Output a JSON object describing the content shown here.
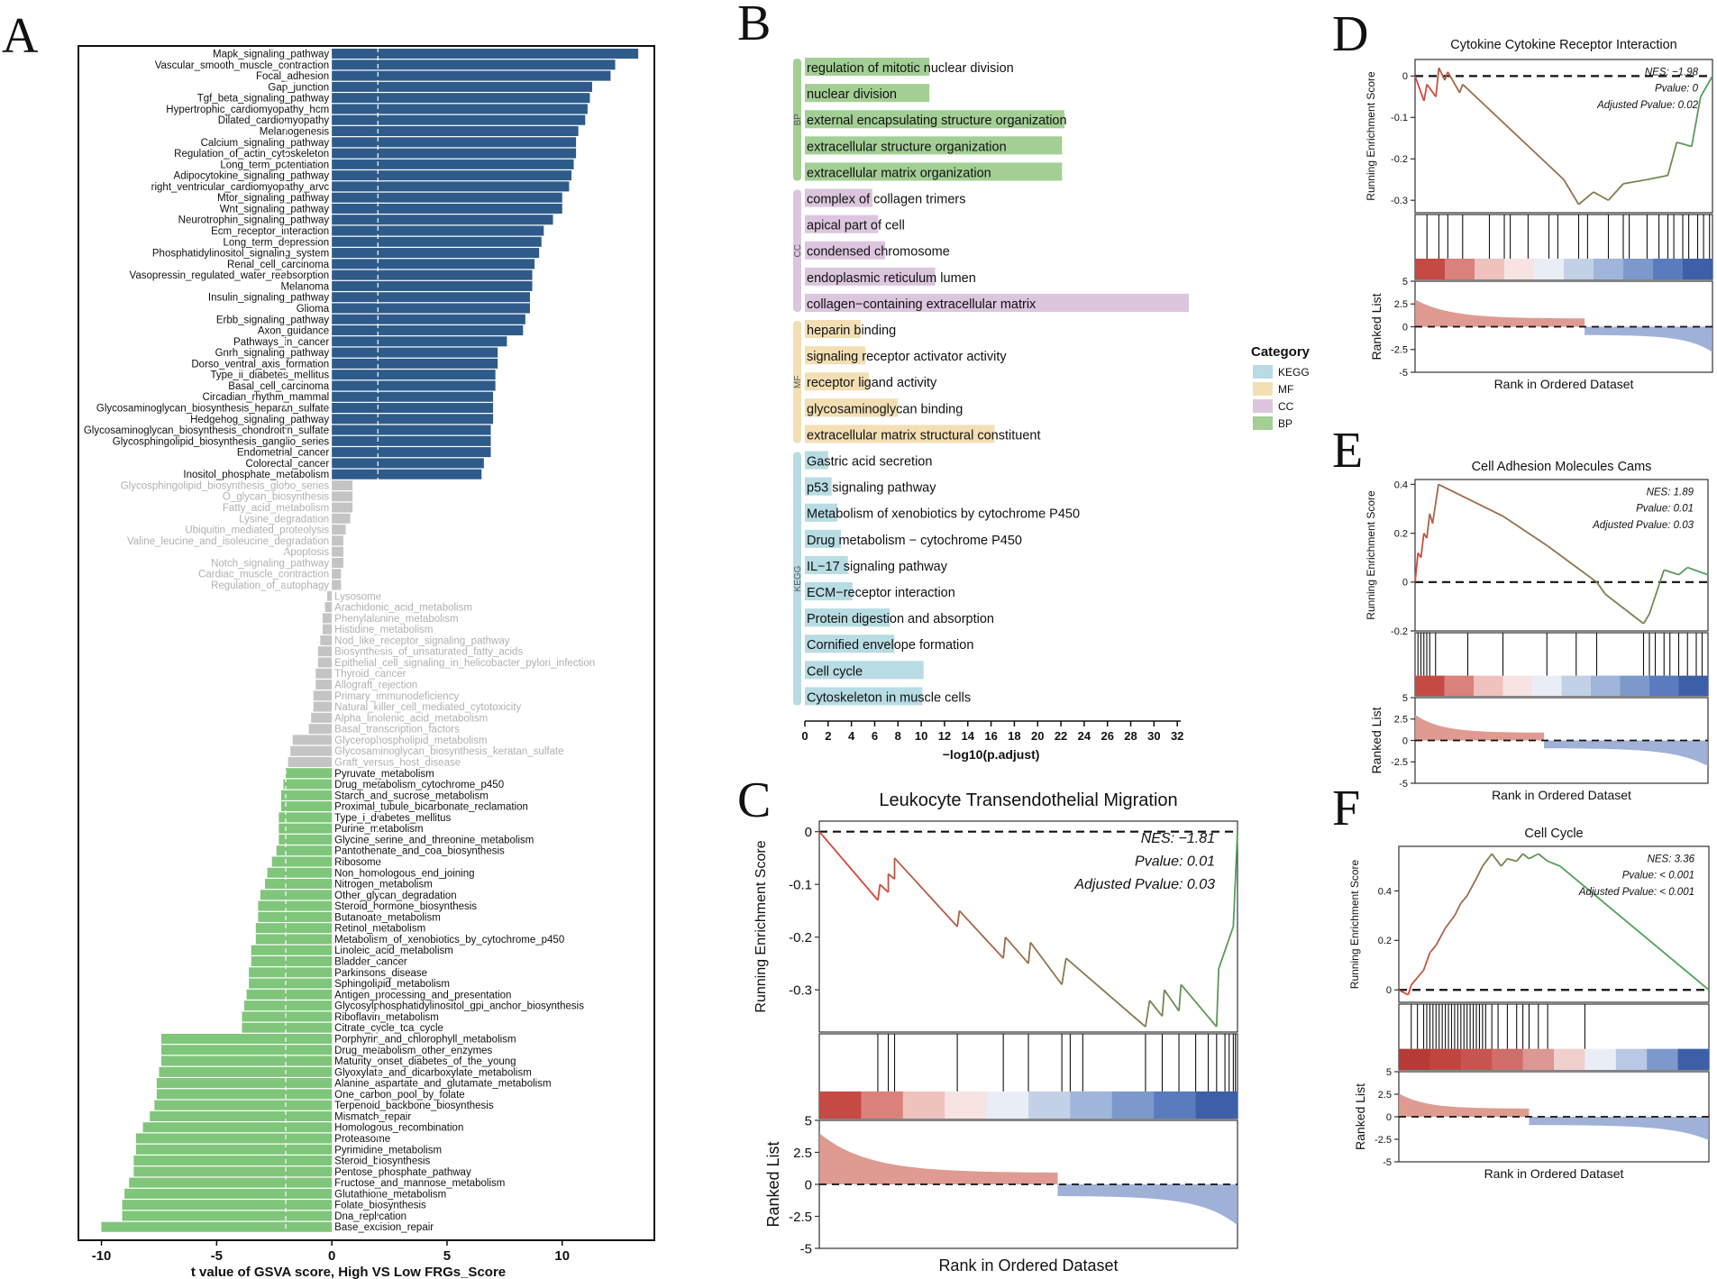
{
  "panels": {
    "A": "A",
    "B": "B",
    "C": "C",
    "D": "D",
    "E": "E",
    "F": "F"
  },
  "colors": {
    "up": "#2e5b89",
    "down": "#7fc57a",
    "ns": "#c4c4c4",
    "kegg": "#b8dce3",
    "mf": "#f3dfb3",
    "cc": "#dcc6de",
    "bp": "#a3cf95",
    "esRed": "#d6473b",
    "esGreen": "#4aa45d",
    "rankRed": "#d9897e",
    "rankBlue": "#8fa3d1"
  },
  "chart_data": [
    {
      "id": "A",
      "type": "bar",
      "xlabel": "t value of GSVA score, High VS Low FRGs_Score",
      "xlim": [
        -11,
        14
      ],
      "xticks": [
        -10,
        -5,
        0,
        5,
        10
      ],
      "threshold": 2,
      "categories": [
        "Mapk_signaling_pathway",
        "Vascular_smooth_muscle_contraction",
        "Focal_adhesion",
        "Gap_junction",
        "Tgf_beta_signaling_pathway",
        "Hypertrophic_cardiomyopathy_hcm",
        "Dilated_cardiomyopathy",
        "Melanogenesis",
        "Calcium_signaling_pathway",
        "Regulation_of_actin_cytoskeleton",
        "Long_term_potentiation",
        "Adipocytokine_signaling_pathway",
        "right_ventricular_cardiomyopathy_arvc",
        "Mtor_signaling_pathway",
        "Wnt_signaling_pathway",
        "Neurotrophin_signaling_pathway",
        "Ecm_receptor_interaction",
        "Long_term_depression",
        "Phosphatidylinositol_signaling_system",
        "Renal_cell_carcinoma",
        "Vasopressin_regulated_water_reabsorption",
        "Melanoma",
        "Insulin_signaling_pathway",
        "Glioma",
        "Erbb_signaling_pathway",
        "Axon_guidance",
        "Pathways_in_cancer",
        "Gnrh_signaling_pathway",
        "Dorso_ventral_axis_formation",
        "Type_ii_diabetes_mellitus",
        "Basal_cell_carcinoma",
        "Circadian_rhythm_mammal",
        "Glycosaminoglycan_biosynthesis_heparan_sulfate",
        "Hedgehog_signaling_pathway",
        "Glycosaminoglycan_biosynthesis_chondroitin_sulfate",
        "Glycosphingolipid_biosynthesis_ganglio_series",
        "Endometrial_cancer",
        "Colorectal_cancer",
        "Inositol_phosphate_metabolism",
        "Glycosphingolipid_biosynthesis_globo_series",
        "O_glycan_biosynthesis",
        "Fatty_acid_metabolism",
        "Lysine_degradation",
        "Ubiquitin_mediated_proteolysis",
        "Valine_leucine_and_isoleucine_degradation",
        "Apoptosis",
        "Notch_signaling_pathway",
        "Cardiac_muscle_contraction",
        "Regulation_of_autophagy",
        "Lysosome",
        "Arachidonic_acid_metabolism",
        "Phenylalanine_metabolism",
        "Histidine_metabolism",
        "Nod_like_receptor_signaling_pathway",
        "Biosynthesis_of_unsaturated_fatty_acids",
        "Epithelial_cell_signaling_in_helicobacter_pylori_infection",
        "Thyroid_cancer",
        "Allograft_rejection",
        "Primary_immunodeficiency",
        "Natural_killer_cell_mediated_cytotoxicity",
        "Alpha_linolenic_acid_metabolism",
        "Basal_transcription_factors",
        "Glycerophospholipid_metabolism",
        "Glycosaminoglycan_biosynthesis_keratan_sulfate",
        "Graft_versus_host_disease",
        "Pyruvate_metabolism",
        "Drug_metabolism_cytochrome_p450",
        "Starch_and_sucrose_metabolism",
        "Proximal_tubule_bicarbonate_reclamation",
        "Type_i_diabetes_mellitus",
        "Purine_metabolism",
        "Glycine_serine_and_threonine_metabolism",
        "Pantothenate_and_coa_biosynthesis",
        "Ribosome",
        "Non_homologous_end_joining",
        "Nitrogen_metabolism",
        "Other_glycan_degradation",
        "Steroid_hormone_biosynthesis",
        "Butanoate_metabolism",
        "Retinol_metabolism",
        "Metabolism_of_xenobiotics_by_cytochrome_p450",
        "Linoleic_acid_metabolism",
        "Bladder_cancer",
        "Parkinsons_disease",
        "Sphingolipid_metabolism",
        "Antigen_processing_and_presentation",
        "Glycosylphosphatidylinositol_gpi_anchor_biosynthesis",
        "Riboflavin_metabolism",
        "Citrate_cycle_tca_cycle",
        "Porphyrin_and_chlorophyll_metabolism",
        "Drug_metabolism_other_enzymes",
        "Maturity_onset_diabetes_of_the_young",
        "Glyoxylate_and_dicarboxylate_metabolism",
        "Alanine_aspartate_and_glutamate_metabolism",
        "One_carbon_pool_by_folate",
        "Terpenoid_backbone_biosynthesis",
        "Mismatch_repair",
        "Homologous_recombination",
        "Proteasome",
        "Pyrimidine_metabolism",
        "Steroid_biosynthesis",
        "Pentose_phosphate_pathway",
        "Fructose_and_mannose_metabolism",
        "Glutathione_metabolism",
        "Folate_biosynthesis",
        "Dna_replication",
        "Base_excision_repair"
      ],
      "values": [
        13.3,
        12.3,
        12.1,
        11.3,
        11.2,
        11.1,
        11.0,
        10.7,
        10.6,
        10.6,
        10.5,
        10.4,
        10.3,
        10.0,
        10.0,
        9.6,
        9.2,
        9.1,
        9.0,
        8.8,
        8.7,
        8.7,
        8.6,
        8.6,
        8.4,
        8.3,
        7.6,
        7.2,
        7.2,
        7.1,
        7.1,
        7.0,
        7.0,
        7.0,
        6.9,
        6.9,
        6.9,
        6.6,
        6.5,
        0.9,
        0.9,
        0.9,
        0.8,
        0.6,
        0.5,
        0.5,
        0.5,
        0.4,
        0.4,
        -0.2,
        -0.3,
        -0.4,
        -0.4,
        -0.5,
        -0.6,
        -0.6,
        -0.7,
        -0.7,
        -0.8,
        -0.8,
        -0.9,
        -1.0,
        -1.7,
        -1.8,
        -1.9,
        -2.0,
        -2.1,
        -2.2,
        -2.2,
        -2.3,
        -2.3,
        -2.3,
        -2.4,
        -2.6,
        -2.8,
        -2.9,
        -3.1,
        -3.2,
        -3.2,
        -3.3,
        -3.3,
        -3.5,
        -3.5,
        -3.6,
        -3.6,
        -3.7,
        -3.8,
        -3.9,
        -3.9,
        -7.4,
        -7.4,
        -7.4,
        -7.5,
        -7.6,
        -7.6,
        -7.7,
        -7.9,
        -8.2,
        -8.5,
        -8.5,
        -8.6,
        -8.6,
        -8.8,
        -9.0,
        -9.1,
        -9.1,
        -10.0
      ]
    },
    {
      "id": "B",
      "type": "bar",
      "xlabel": "−log10(p.adjust)",
      "xlim": [
        0,
        34
      ],
      "xticks": [
        0,
        2,
        4,
        6,
        8,
        10,
        12,
        14,
        16,
        18,
        20,
        22,
        24,
        26,
        28,
        30,
        32
      ],
      "legend_title": "Category",
      "legend": [
        "KEGG",
        "MF",
        "CC",
        "BP"
      ],
      "groups": [
        {
          "name": "BP",
          "terms": [
            "regulation of mitotic nuclear division",
            "nuclear division",
            "external encapsulating structure organization",
            "extracellular structure organization",
            "extracellular matrix organization"
          ],
          "values": [
            10.7,
            10.7,
            22.3,
            22.1,
            22.1
          ]
        },
        {
          "name": "CC",
          "terms": [
            "complex of collagen trimers",
            "apical part of cell",
            "condensed chromosome",
            "endoplasmic reticulum lumen",
            "collagen−containing extracellular matrix"
          ],
          "values": [
            5.8,
            6.3,
            6.9,
            11.2,
            33.0
          ]
        },
        {
          "name": "MF",
          "terms": [
            "heparin binding",
            "signaling receptor activator activity",
            "receptor ligand activity",
            "glycosaminoglycan binding",
            "extracellular matrix structural constituent"
          ],
          "values": [
            4.8,
            5.2,
            5.5,
            8.0,
            16.3
          ]
        },
        {
          "name": "KEGG",
          "terms": [
            "Gastric acid secretion",
            "p53 signaling pathway",
            "Metabolism of xenobiotics by cytochrome P450",
            "Drug metabolism − cytochrome P450",
            "IL−17 signaling pathway",
            "ECM−receptor interaction",
            "Protein digestion and absorption",
            "Cornified envelope formation",
            "Cell cycle",
            "Cytoskeleton in muscle cells"
          ],
          "values": [
            2.0,
            2.3,
            2.8,
            3.1,
            3.7,
            4.1,
            7.3,
            7.7,
            10.2,
            10.1
          ]
        }
      ]
    },
    {
      "id": "C",
      "type": "line",
      "title": "Leukocyte Transendothelial Migration",
      "ylabel": "Running Enrichment Score",
      "ylabel2": "Ranked List",
      "xlabel": "Rank in Ordered Dataset",
      "ylim": [
        -0.38,
        0.02
      ],
      "yticks": [
        0.0,
        -0.1,
        -0.2,
        -0.3
      ],
      "ylim2": [
        -5,
        5
      ],
      "yticks2": [
        5.0,
        2.5,
        0.0,
        -2.5,
        -5.0
      ],
      "nes": "NES: −1.81",
      "pvalue": "Pvalue: 0.01",
      "adj": "Adjusted Pvalue: 0.03",
      "es_x": [
        0,
        0.14,
        0.145,
        0.165,
        0.165,
        0.18,
        0.18,
        0.33,
        0.335,
        0.44,
        0.445,
        0.5,
        0.505,
        0.58,
        0.59,
        0.78,
        0.79,
        0.82,
        0.825,
        0.86,
        0.865,
        0.95,
        0.955,
        0.99,
        1.0
      ],
      "es_y": [
        0,
        -0.13,
        -0.1,
        -0.115,
        -0.08,
        -0.09,
        -0.05,
        -0.18,
        -0.15,
        -0.24,
        -0.2,
        -0.25,
        -0.21,
        -0.29,
        -0.24,
        -0.37,
        -0.32,
        -0.35,
        -0.3,
        -0.34,
        -0.29,
        -0.37,
        -0.26,
        -0.18,
        0.0
      ],
      "hits": [
        0.14,
        0.165,
        0.18,
        0.33,
        0.44,
        0.5,
        0.58,
        0.6,
        0.63,
        0.78,
        0.82,
        0.86,
        0.9,
        0.93,
        0.95,
        0.97,
        0.98,
        0.99,
        0.995
      ],
      "zero_cross": 0.57,
      "rank_max": 4.0,
      "rank_min": -3.2,
      "heat": [
        "#c54a44",
        "#d9817a",
        "#efc2be",
        "#f7e4e2",
        "#e9eef6",
        "#c3d1e6",
        "#9fb5d9",
        "#7d99cb",
        "#5a7bbd",
        "#3d5fa8"
      ]
    },
    {
      "id": "D",
      "type": "line",
      "title": "Cytokine Cytokine Receptor Interaction",
      "ylabel": "Running Enrichment Score",
      "ylabel2": "Ranked List",
      "xlabel": "Rank in Ordered Dataset",
      "ylim": [
        -0.33,
        0.04
      ],
      "yticks": [
        0.0,
        -0.1,
        -0.2,
        -0.3
      ],
      "ylim2": [
        -5,
        5
      ],
      "yticks2": [
        5.0,
        2.5,
        0.0,
        -2.5,
        -5.0
      ],
      "nes": "NES: −1.98",
      "pvalue": "Pvalue: 0",
      "adj": "Adjusted Pvalue: 0.02",
      "es_x": [
        0,
        0.03,
        0.04,
        0.07,
        0.08,
        0.1,
        0.11,
        0.15,
        0.16,
        0.5,
        0.55,
        0.6,
        0.65,
        0.7,
        0.78,
        0.85,
        0.88,
        0.93,
        0.96,
        1.0
      ],
      "es_y": [
        0,
        -0.06,
        -0.02,
        -0.05,
        0.02,
        -0.01,
        0.01,
        -0.04,
        -0.02,
        -0.25,
        -0.31,
        -0.28,
        -0.3,
        -0.26,
        -0.25,
        -0.24,
        -0.16,
        -0.17,
        -0.05,
        0.0
      ],
      "hits": [
        0.04,
        0.08,
        0.11,
        0.16,
        0.25,
        0.3,
        0.32,
        0.38,
        0.45,
        0.48,
        0.55,
        0.58,
        0.65,
        0.7,
        0.72,
        0.78,
        0.82,
        0.85,
        0.87,
        0.9,
        0.92,
        0.95,
        0.97,
        0.99
      ],
      "zero_cross": 0.57,
      "rank_max": 3.0,
      "rank_min": -2.8,
      "heat": [
        "#c54a44",
        "#d9817a",
        "#efc2be",
        "#f7e4e2",
        "#e9eef6",
        "#c3d1e6",
        "#9fb5d9",
        "#7d99cb",
        "#5a7bbd",
        "#3d5fa8"
      ]
    },
    {
      "id": "E",
      "type": "line",
      "title": "Cell Adhesion Molecules Cams",
      "ylabel": "Running Enrichment Score",
      "ylabel2": "Ranked List",
      "xlabel": "Rank in Ordered Dataset",
      "ylim": [
        -0.2,
        0.42
      ],
      "yticks": [
        0.4,
        0.2,
        0.0,
        -0.2
      ],
      "ylim2": [
        -5,
        5
      ],
      "yticks2": [
        5.0,
        2.5,
        0.0,
        -2.5,
        -5.0
      ],
      "nes": "NES: 1.89",
      "pvalue": "Pvalue: 0.01",
      "adj": "Adjusted Pvalue: 0.03",
      "es_x": [
        0,
        0.01,
        0.02,
        0.03,
        0.04,
        0.05,
        0.06,
        0.08,
        0.3,
        0.45,
        0.62,
        0.65,
        0.78,
        0.8,
        0.85,
        0.9,
        0.93,
        1.0
      ],
      "es_y": [
        0,
        0.12,
        0.1,
        0.2,
        0.18,
        0.28,
        0.24,
        0.4,
        0.27,
        0.15,
        0.0,
        -0.05,
        -0.17,
        -0.13,
        0.05,
        0.03,
        0.06,
        0.03
      ],
      "hits": [
        0.01,
        0.02,
        0.03,
        0.04,
        0.05,
        0.07,
        0.18,
        0.3,
        0.45,
        0.55,
        0.62,
        0.78,
        0.8,
        0.82,
        0.85,
        0.87,
        0.9,
        0.93,
        0.96,
        0.98
      ],
      "zero_cross": 0.44,
      "rank_max": 3.0,
      "rank_min": -3.0,
      "heat": [
        "#c54a44",
        "#d9817a",
        "#efc2be",
        "#f7e4e2",
        "#e9eef6",
        "#c3d1e6",
        "#9fb5d9",
        "#7d99cb",
        "#5a7bbd",
        "#3d5fa8"
      ]
    },
    {
      "id": "F",
      "type": "line",
      "title": "Cell Cycle",
      "ylabel": "Running Enrichment Score",
      "ylabel2": "Ranked List",
      "xlabel": "Rank in Ordered Dataset",
      "ylim": [
        -0.05,
        0.58
      ],
      "yticks": [
        0.4,
        0.2,
        0.0
      ],
      "ylim2": [
        -5,
        5
      ],
      "yticks2": [
        5.0,
        2.5,
        0.0,
        -2.5,
        -5.0
      ],
      "nes": "NES: 3.36",
      "pvalue": "Pvalue: < 0.001",
      "adj": "Adjusted Pvalue: < 0.001",
      "es_x": [
        0,
        0.03,
        0.04,
        0.06,
        0.08,
        0.1,
        0.12,
        0.15,
        0.18,
        0.2,
        0.22,
        0.25,
        0.27,
        0.3,
        0.33,
        0.35,
        0.38,
        0.4,
        0.42,
        0.45,
        0.48,
        0.52,
        1.0
      ],
      "es_y": [
        0,
        -0.02,
        0.02,
        0.05,
        0.08,
        0.15,
        0.18,
        0.25,
        0.3,
        0.35,
        0.38,
        0.45,
        0.5,
        0.55,
        0.5,
        0.53,
        0.52,
        0.55,
        0.53,
        0.55,
        0.52,
        0.5,
        0.0
      ],
      "hits": [
        0.04,
        0.06,
        0.08,
        0.09,
        0.1,
        0.11,
        0.12,
        0.13,
        0.14,
        0.15,
        0.16,
        0.17,
        0.18,
        0.19,
        0.2,
        0.21,
        0.22,
        0.23,
        0.24,
        0.25,
        0.26,
        0.27,
        0.28,
        0.3,
        0.32,
        0.35,
        0.38,
        0.4,
        0.42,
        0.45,
        0.48,
        0.6
      ],
      "zero_cross": 0.42,
      "rank_max": 2.6,
      "rank_min": -2.6,
      "heat": [
        "#b63b36",
        "#c0453f",
        "#c65550",
        "#cf6f6a",
        "#dc9893",
        "#efd0cd",
        "#e9eef6",
        "#b9c8e4",
        "#7d99cb",
        "#3d5fa8"
      ]
    }
  ]
}
